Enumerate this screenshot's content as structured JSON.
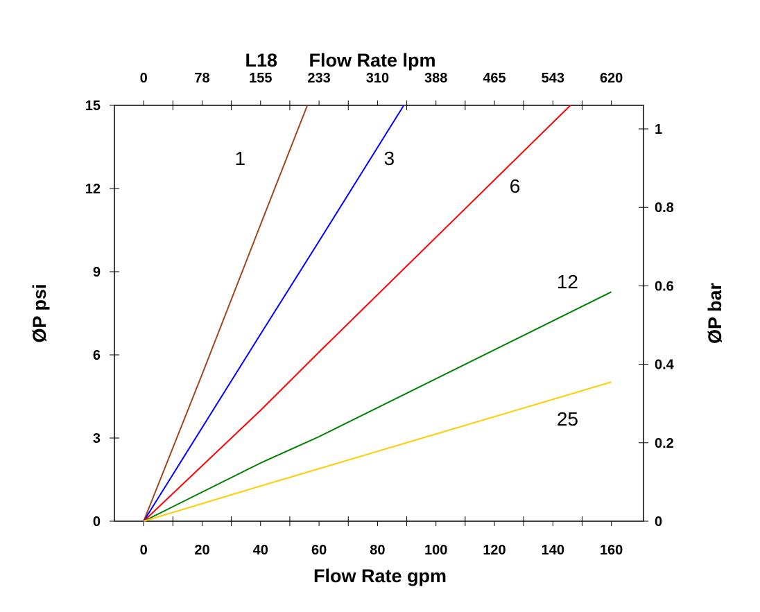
{
  "chart_data": {
    "type": "line",
    "title": "L18",
    "xlabel": "Flow Rate gpm",
    "x2label": "Flow Rate lpm",
    "ylabel": "ØP psi",
    "y2label": "ØP bar",
    "xlim": [
      -10,
      171
    ],
    "ylim": [
      0,
      15
    ],
    "y2lim": [
      0,
      1.06
    ],
    "grid": false,
    "x_ticks": [
      0,
      20,
      40,
      60,
      80,
      100,
      120,
      140,
      160
    ],
    "x_tick_labels": [
      "0",
      "20",
      "40",
      "60",
      "80",
      "100",
      "120",
      "140",
      "160"
    ],
    "x_minor_ticks": [
      10,
      30,
      50,
      70,
      90,
      110,
      130,
      150
    ],
    "x2_tick_labels": [
      "0",
      "78",
      "155",
      "233",
      "310",
      "388",
      "465",
      "543",
      "620"
    ],
    "y_ticks": [
      0,
      3,
      6,
      9,
      12,
      15
    ],
    "y_tick_labels": [
      "0",
      "3",
      "6",
      "9",
      "12",
      "15"
    ],
    "y2_ticks": [
      0,
      0.2,
      0.4,
      0.6,
      0.8,
      1
    ],
    "y2_tick_labels": [
      "0",
      "0.2",
      "0.4",
      "0.6",
      "0.8",
      "1"
    ],
    "series": [
      {
        "name": "1",
        "color": "#A0461E",
        "points": [
          [
            0,
            0
          ],
          [
            20,
            5.3
          ],
          [
            40,
            10.7
          ],
          [
            56,
            15
          ]
        ],
        "label_at": [
          33,
          13.1
        ]
      },
      {
        "name": "3",
        "color": "#0000FF",
        "points": [
          [
            0,
            0
          ],
          [
            40,
            6.75
          ],
          [
            60,
            10.1
          ],
          [
            89,
            15
          ]
        ],
        "label_at": [
          84,
          13.1
        ]
      },
      {
        "name": "6",
        "color": "#FF0000",
        "points": [
          [
            0,
            0
          ],
          [
            40,
            4.0
          ],
          [
            60,
            6.1
          ],
          [
            146,
            15
          ]
        ],
        "label_at": [
          127,
          12.1
        ]
      },
      {
        "name": "12",
        "color": "#008000",
        "points": [
          [
            0,
            0
          ],
          [
            40,
            2.1
          ],
          [
            60,
            3.05
          ],
          [
            160,
            8.27
          ]
        ],
        "label_at": [
          145,
          8.65
        ]
      },
      {
        "name": "25",
        "color": "#FFCC00",
        "points": [
          [
            0,
            0
          ],
          [
            40,
            1.27
          ],
          [
            160,
            5.02
          ]
        ],
        "label_at": [
          145,
          3.7
        ]
      }
    ]
  }
}
